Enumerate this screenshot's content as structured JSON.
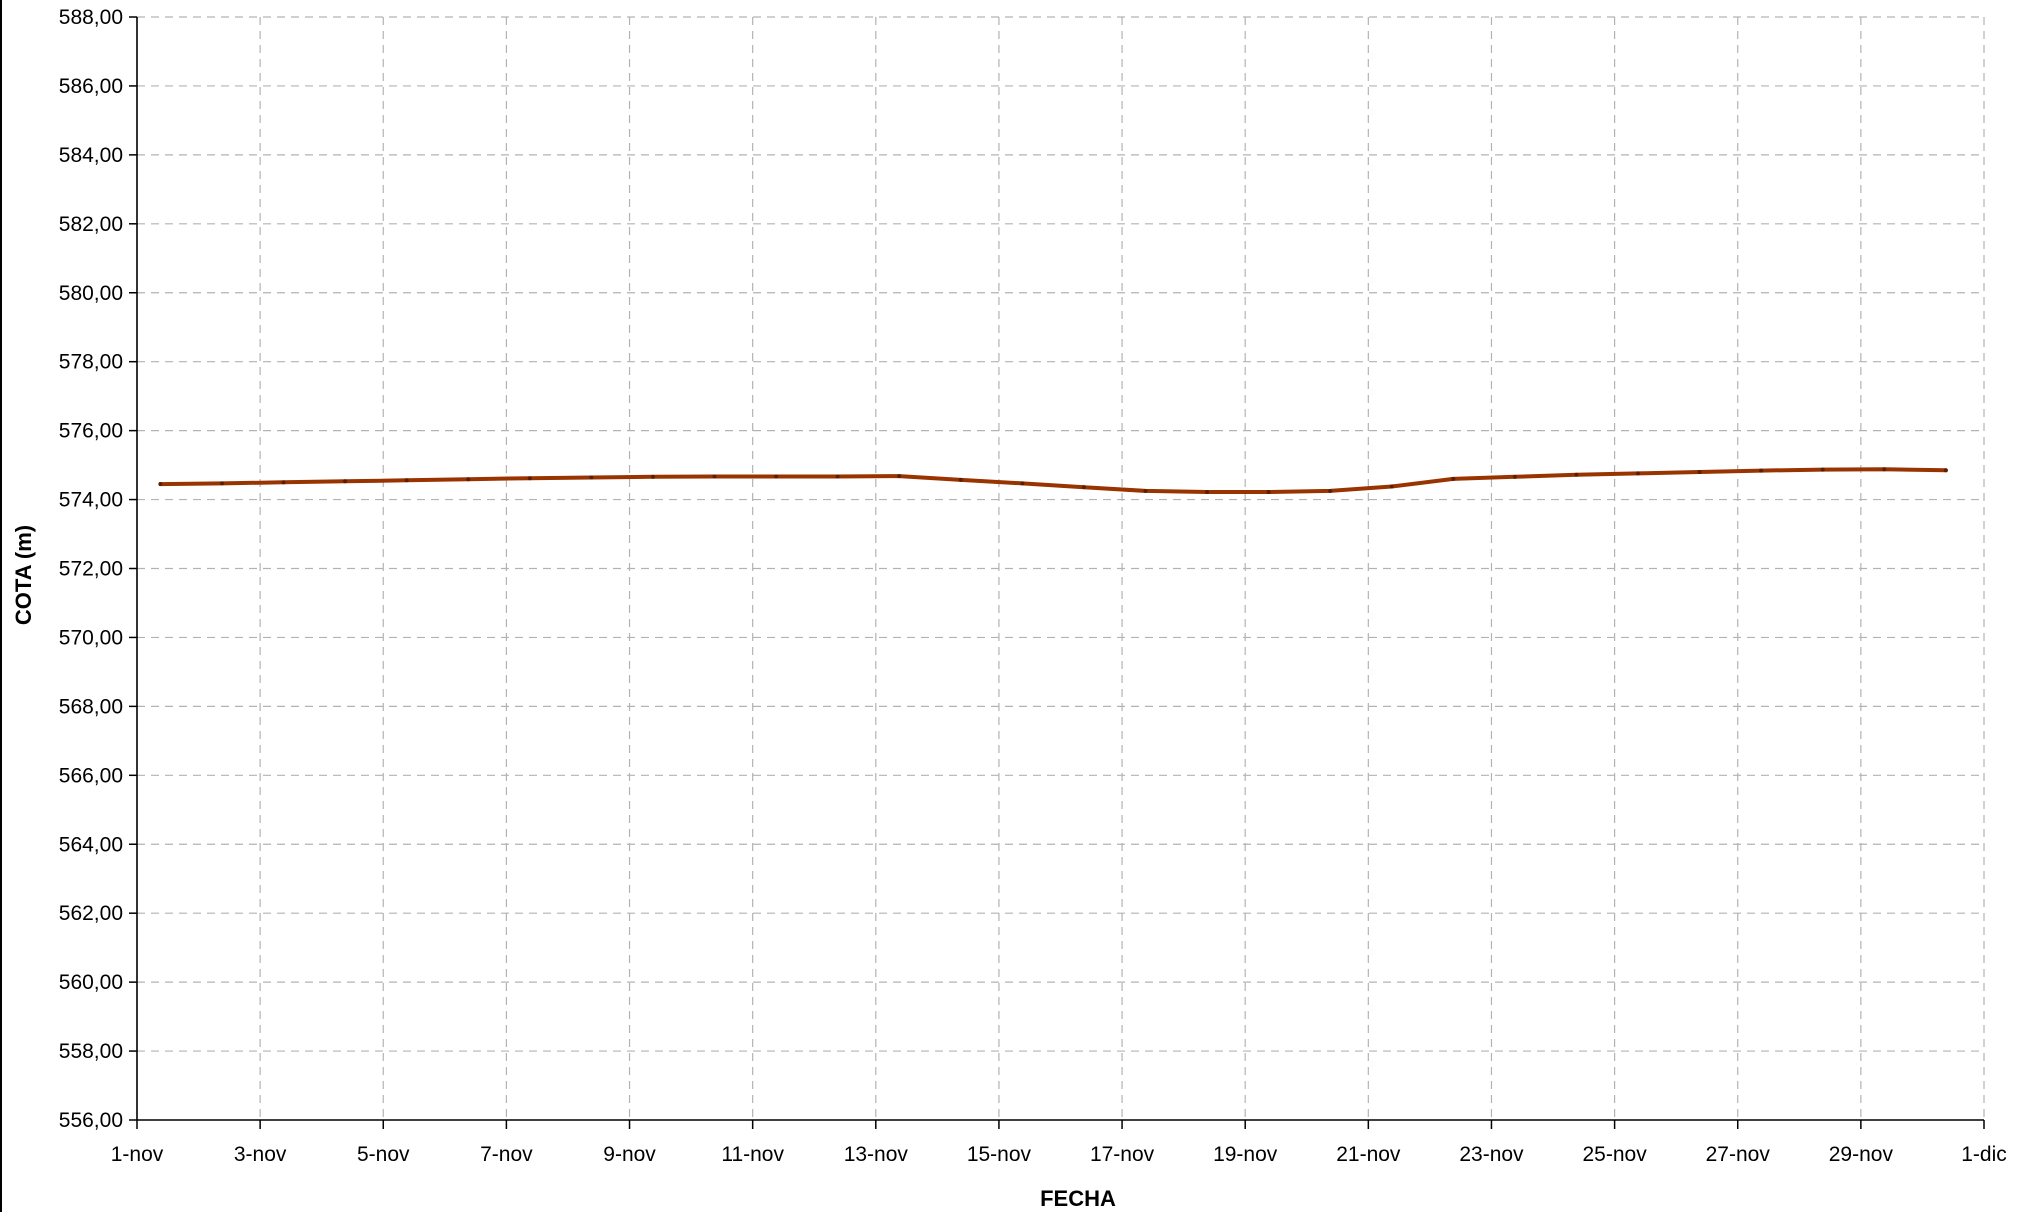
{
  "chart_data": {
    "type": "line",
    "xlabel": "FECHA",
    "ylabel": "COTA (m)",
    "x_ticks": [
      "1-nov",
      "3-nov",
      "5-nov",
      "7-nov",
      "9-nov",
      "11-nov",
      "13-nov",
      "15-nov",
      "17-nov",
      "19-nov",
      "21-nov",
      "23-nov",
      "25-nov",
      "27-nov",
      "29-nov",
      "1-dic"
    ],
    "y_ticks": [
      "588,00",
      "586,00",
      "584,00",
      "582,00",
      "580,00",
      "578,00",
      "576,00",
      "574,00",
      "572,00",
      "570,00",
      "568,00",
      "566,00",
      "564,00",
      "562,00",
      "560,00",
      "558,00",
      "556,00"
    ],
    "ylim": [
      556,
      588
    ],
    "x_range_days": [
      "1-nov",
      "1-dic"
    ],
    "grid": true,
    "line_color": "#993300",
    "series": [
      {
        "points": [
          {
            "x": "1-nov",
            "y": 574.45
          },
          {
            "x": "2-nov",
            "y": 574.47
          },
          {
            "x": "3-nov",
            "y": 574.5
          },
          {
            "x": "4-nov",
            "y": 574.53
          },
          {
            "x": "5-nov",
            "y": 574.56
          },
          {
            "x": "6-nov",
            "y": 574.59
          },
          {
            "x": "7-nov",
            "y": 574.62
          },
          {
            "x": "8-nov",
            "y": 574.64
          },
          {
            "x": "9-nov",
            "y": 574.66
          },
          {
            "x": "10-nov",
            "y": 574.67
          },
          {
            "x": "11-nov",
            "y": 574.67
          },
          {
            "x": "12-nov",
            "y": 574.67
          },
          {
            "x": "13-nov",
            "y": 574.68
          },
          {
            "x": "14-nov",
            "y": 574.57
          },
          {
            "x": "15-nov",
            "y": 574.47
          },
          {
            "x": "16-nov",
            "y": 574.36
          },
          {
            "x": "17-nov",
            "y": 574.25
          },
          {
            "x": "18-nov",
            "y": 574.22
          },
          {
            "x": "19-nov",
            "y": 574.22
          },
          {
            "x": "20-nov",
            "y": 574.25
          },
          {
            "x": "21-nov",
            "y": 574.38
          },
          {
            "x": "22-nov",
            "y": 574.6
          },
          {
            "x": "23-nov",
            "y": 574.66
          },
          {
            "x": "24-nov",
            "y": 574.72
          },
          {
            "x": "25-nov",
            "y": 574.76
          },
          {
            "x": "26-nov",
            "y": 574.8
          },
          {
            "x": "27-nov",
            "y": 574.84
          },
          {
            "x": "28-nov",
            "y": 574.87
          },
          {
            "x": "29-nov",
            "y": 574.88
          },
          {
            "x": "30-nov",
            "y": 574.85
          }
        ]
      }
    ]
  }
}
